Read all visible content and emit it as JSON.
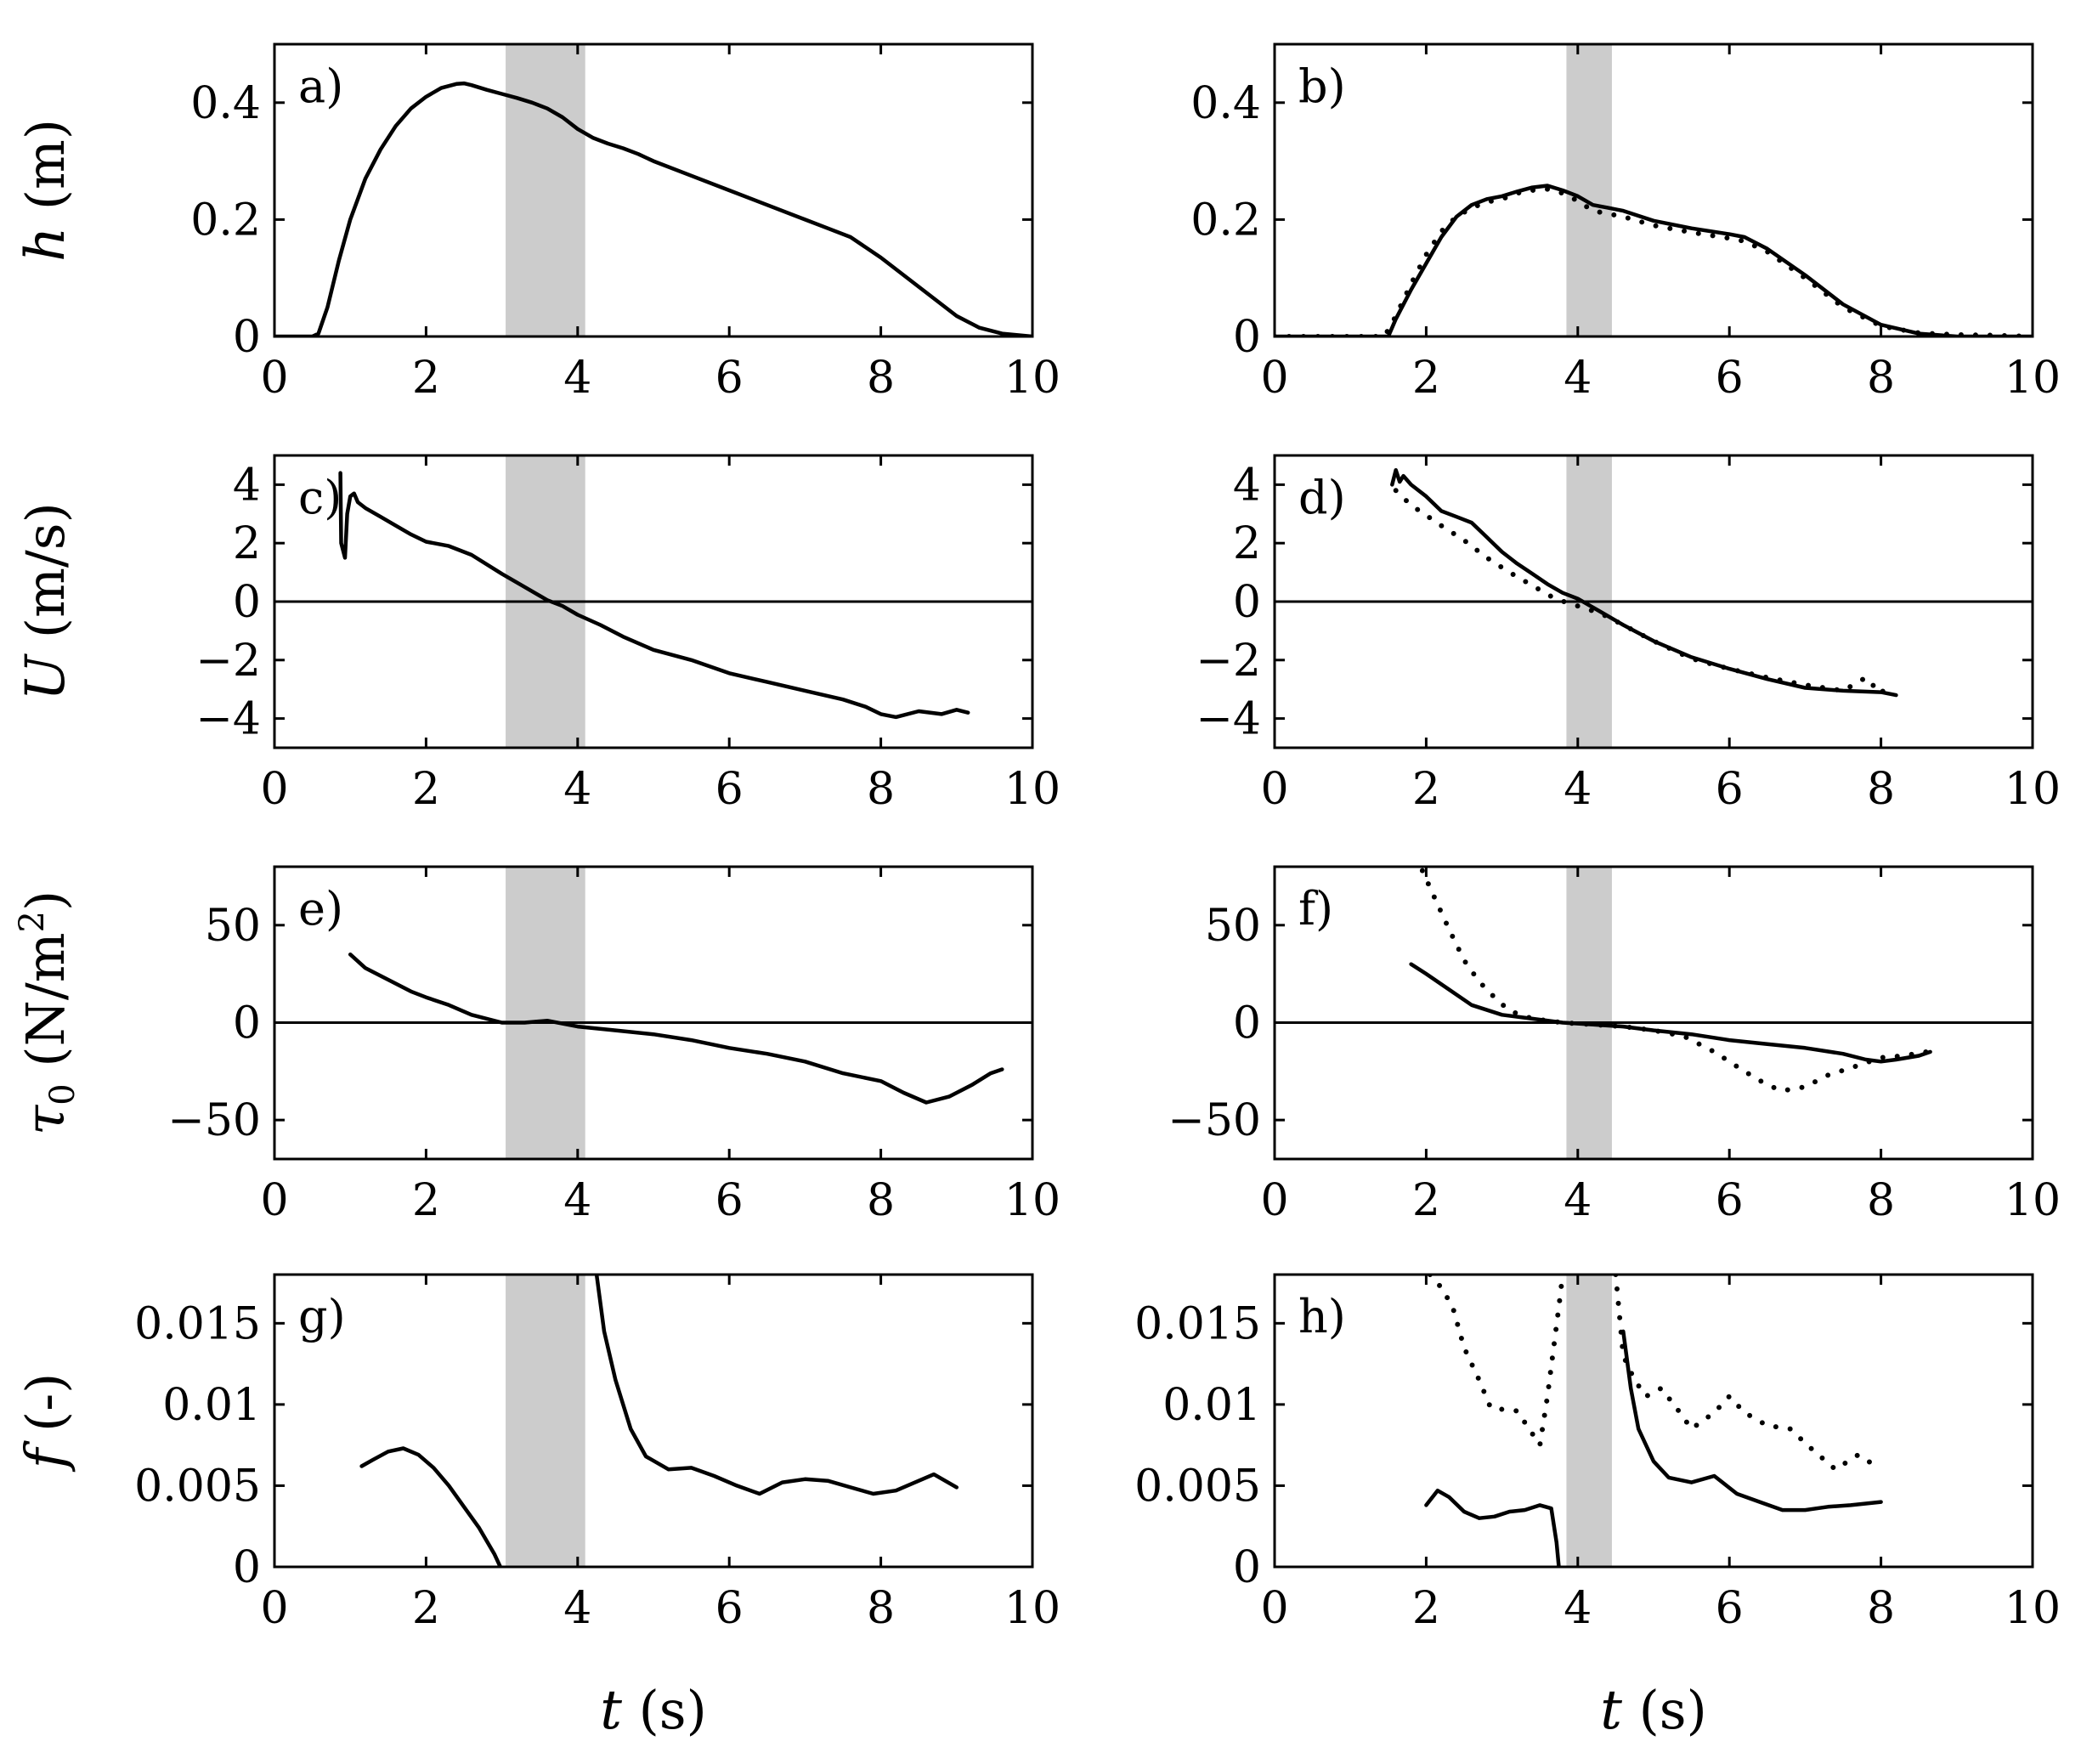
{
  "chart_data": [
    {
      "type": "line",
      "panel_label": "a)",
      "row": 0,
      "col": 0,
      "ylabel_sym": "h",
      "ylabel_unit": " (m)",
      "xlabel": "",
      "xlim": [
        0,
        10
      ],
      "ylim": [
        0,
        0.5
      ],
      "xticks": [
        0,
        2,
        4,
        6,
        8,
        10
      ],
      "xtick_labels": [
        "0",
        "2",
        "4",
        "6",
        "8",
        "10"
      ],
      "yticks": [
        0,
        0.2,
        0.4
      ],
      "ytick_labels": [
        "0",
        "0.2",
        "0.4"
      ],
      "shade": [
        3.05,
        4.1
      ],
      "zero_line": false,
      "series": [
        {
          "name": "solid",
          "style": "solid",
          "x": [
            0,
            0.5,
            0.58,
            0.7,
            0.85,
            1.0,
            1.2,
            1.4,
            1.6,
            1.8,
            2.0,
            2.2,
            2.4,
            2.5,
            2.6,
            2.8,
            3.0,
            3.2,
            3.4,
            3.6,
            3.8,
            4.0,
            4.2,
            4.4,
            4.6,
            4.8,
            5.0,
            5.5,
            6.0,
            6.5,
            7.0,
            7.3,
            7.6,
            8.0,
            8.5,
            9.0,
            9.3,
            9.6,
            10
          ],
          "y": [
            0,
            0,
            0.005,
            0.05,
            0.13,
            0.2,
            0.27,
            0.32,
            0.36,
            0.39,
            0.41,
            0.425,
            0.432,
            0.433,
            0.43,
            0.422,
            0.415,
            0.408,
            0.4,
            0.39,
            0.375,
            0.355,
            0.34,
            0.33,
            0.322,
            0.312,
            0.3,
            0.275,
            0.25,
            0.225,
            0.2,
            0.185,
            0.17,
            0.135,
            0.085,
            0.035,
            0.015,
            0.005,
            0
          ]
        }
      ]
    },
    {
      "type": "line",
      "panel_label": "b)",
      "row": 0,
      "col": 1,
      "ylabel_sym": "",
      "ylabel_unit": "",
      "xlabel": "",
      "xlim": [
        0,
        10
      ],
      "ylim": [
        0,
        0.5
      ],
      "xticks": [
        0,
        2,
        4,
        6,
        8,
        10
      ],
      "xtick_labels": [
        "0",
        "2",
        "4",
        "6",
        "8",
        "10"
      ],
      "yticks": [
        0,
        0.2,
        0.4
      ],
      "ytick_labels": [
        "0",
        "0.2",
        "0.4"
      ],
      "shade": [
        3.85,
        4.45
      ],
      "zero_line": false,
      "series": [
        {
          "name": "solid",
          "style": "solid",
          "x": [
            0,
            1.5,
            1.6,
            1.8,
            2.0,
            2.2,
            2.4,
            2.6,
            2.8,
            3.0,
            3.2,
            3.4,
            3.6,
            3.8,
            4.0,
            4.2,
            4.4,
            4.6,
            5.0,
            5.5,
            6.0,
            6.2,
            6.5,
            7.0,
            7.5,
            8.0,
            8.5,
            9.0,
            9.5,
            10
          ],
          "y": [
            0,
            0,
            0.03,
            0.08,
            0.125,
            0.17,
            0.205,
            0.225,
            0.235,
            0.24,
            0.248,
            0.255,
            0.258,
            0.25,
            0.24,
            0.225,
            0.22,
            0.215,
            0.198,
            0.185,
            0.175,
            0.17,
            0.15,
            0.105,
            0.055,
            0.02,
            0.005,
            0,
            0,
            0
          ]
        },
        {
          "name": "dotted",
          "style": "dotted",
          "x": [
            0,
            1.45,
            1.6,
            1.8,
            2.0,
            2.2,
            2.4,
            2.6,
            2.8,
            3.0,
            3.2,
            3.4,
            3.6,
            3.8,
            4.0,
            4.2,
            4.4,
            4.6,
            5.0,
            5.5,
            6.0,
            6.2,
            6.5,
            7.0,
            7.5,
            8.0,
            8.5,
            9.0,
            9.5,
            10
          ],
          "y": [
            0,
            0,
            0.035,
            0.09,
            0.14,
            0.18,
            0.205,
            0.22,
            0.23,
            0.235,
            0.245,
            0.25,
            0.252,
            0.245,
            0.232,
            0.215,
            0.21,
            0.205,
            0.19,
            0.178,
            0.168,
            0.163,
            0.145,
            0.1,
            0.05,
            0.018,
            0.006,
            0.003,
            0.002,
            0
          ]
        }
      ]
    },
    {
      "type": "line",
      "panel_label": "c)",
      "row": 1,
      "col": 0,
      "ylabel_sym": "U",
      "ylabel_unit": " (m/s)",
      "xlabel": "",
      "xlim": [
        0,
        10
      ],
      "ylim": [
        -5,
        5
      ],
      "xticks": [
        0,
        2,
        4,
        6,
        8,
        10
      ],
      "xtick_labels": [
        "0",
        "2",
        "4",
        "6",
        "8",
        "10"
      ],
      "yticks": [
        -4,
        -2,
        0,
        2,
        4
      ],
      "ytick_labels": [
        "−4",
        "−2",
        "0",
        "2",
        "4"
      ],
      "shade": [
        3.05,
        4.1
      ],
      "zero_line": true,
      "series": [
        {
          "name": "solid",
          "style": "solid",
          "x": [
            0.87,
            0.88,
            0.93,
            0.96,
            1.0,
            1.05,
            1.1,
            1.2,
            1.4,
            1.6,
            1.8,
            2.0,
            2.3,
            2.6,
            3.0,
            3.3,
            3.6,
            3.8,
            4.0,
            4.3,
            4.6,
            5.0,
            5.5,
            6.0,
            6.5,
            7.0,
            7.5,
            7.8,
            8.0,
            8.2,
            8.5,
            8.8,
            9.0,
            9.15
          ],
          "y": [
            4.4,
            2.0,
            1.5,
            3.0,
            3.6,
            3.7,
            3.4,
            3.2,
            2.9,
            2.6,
            2.3,
            2.05,
            1.9,
            1.6,
            0.95,
            0.5,
            0.05,
            -0.15,
            -0.45,
            -0.8,
            -1.2,
            -1.65,
            -2.0,
            -2.45,
            -2.75,
            -3.05,
            -3.35,
            -3.6,
            -3.85,
            -3.95,
            -3.75,
            -3.85,
            -3.7,
            -3.8
          ]
        }
      ]
    },
    {
      "type": "line",
      "panel_label": "d)",
      "row": 1,
      "col": 1,
      "ylabel_sym": "",
      "ylabel_unit": "",
      "xlabel": "",
      "xlim": [
        0,
        10
      ],
      "ylim": [
        -5,
        5
      ],
      "xticks": [
        0,
        2,
        4,
        6,
        8,
        10
      ],
      "xtick_labels": [
        "0",
        "2",
        "4",
        "6",
        "8",
        "10"
      ],
      "yticks": [
        -4,
        -2,
        0,
        2,
        4
      ],
      "ytick_labels": [
        "−4",
        "−2",
        "0",
        "2",
        "4"
      ],
      "shade": [
        3.85,
        4.45
      ],
      "zero_line": true,
      "series": [
        {
          "name": "solid",
          "style": "solid",
          "x": [
            1.55,
            1.6,
            1.65,
            1.7,
            1.8,
            2.0,
            2.2,
            2.4,
            2.6,
            2.8,
            3.0,
            3.2,
            3.4,
            3.6,
            3.8,
            4.0,
            4.3,
            4.6,
            5.0,
            5.5,
            6.0,
            6.5,
            7.0,
            7.5,
            8.0,
            8.2
          ],
          "y": [
            4.0,
            4.5,
            4.1,
            4.3,
            4.0,
            3.6,
            3.1,
            2.9,
            2.7,
            2.2,
            1.7,
            1.3,
            0.95,
            0.6,
            0.3,
            0.1,
            -0.35,
            -0.8,
            -1.35,
            -1.9,
            -2.3,
            -2.65,
            -2.95,
            -3.05,
            -3.1,
            -3.2
          ]
        },
        {
          "name": "dotted",
          "style": "dotted",
          "x": [
            1.6,
            1.8,
            2.0,
            2.2,
            2.5,
            2.8,
            3.1,
            3.4,
            3.7,
            4.0,
            4.3,
            4.6,
            5.0,
            5.5,
            6.0,
            6.5,
            7.0,
            7.5,
            7.8,
            8.0,
            8.1
          ],
          "y": [
            3.8,
            3.3,
            2.95,
            2.6,
            2.1,
            1.5,
            1.0,
            0.55,
            0.1,
            -0.15,
            -0.4,
            -0.8,
            -1.35,
            -1.95,
            -2.3,
            -2.6,
            -2.85,
            -3.05,
            -2.6,
            -3.15,
            -2.8
          ]
        }
      ]
    },
    {
      "type": "line",
      "panel_label": "e)",
      "row": 2,
      "col": 0,
      "ylabel_sym": "τ",
      "ylabel_sub": "0",
      "ylabel_unit": " (N/m",
      "ylabel_sup": "2",
      "ylabel_end": ")",
      "xlabel": "",
      "xlim": [
        0,
        10
      ],
      "ylim": [
        -70,
        80
      ],
      "xticks": [
        0,
        2,
        4,
        6,
        8,
        10
      ],
      "xtick_labels": [
        "0",
        "2",
        "4",
        "6",
        "8",
        "10"
      ],
      "yticks": [
        -50,
        0,
        50
      ],
      "ytick_labels": [
        "−50",
        "0",
        "50"
      ],
      "shade": [
        3.05,
        4.1
      ],
      "zero_line": true,
      "series": [
        {
          "name": "solid",
          "style": "solid",
          "x": [
            1.0,
            1.2,
            1.5,
            1.8,
            2.0,
            2.3,
            2.6,
            3.0,
            3.3,
            3.6,
            4.0,
            4.5,
            5.0,
            5.5,
            6.0,
            6.5,
            7.0,
            7.5,
            8.0,
            8.3,
            8.6,
            8.9,
            9.2,
            9.45,
            9.6
          ],
          "y": [
            35,
            28,
            22,
            16,
            13,
            9,
            4,
            0,
            0,
            1,
            -2,
            -4,
            -6,
            -9,
            -13,
            -16,
            -20,
            -26,
            -30,
            -36,
            -41,
            -38,
            -32,
            -26,
            -24
          ]
        }
      ]
    },
    {
      "type": "line",
      "panel_label": "f)",
      "row": 2,
      "col": 1,
      "ylabel_sym": "",
      "ylabel_unit": "",
      "xlabel": "",
      "xlim": [
        0,
        10
      ],
      "ylim": [
        -70,
        80
      ],
      "xticks": [
        0,
        2,
        4,
        6,
        8,
        10
      ],
      "xtick_labels": [
        "0",
        "2",
        "4",
        "6",
        "8",
        "10"
      ],
      "yticks": [
        -50,
        0,
        50
      ],
      "ytick_labels": [
        "−50",
        "0",
        "50"
      ],
      "shade": [
        3.85,
        4.45
      ],
      "zero_line": true,
      "series": [
        {
          "name": "solid",
          "style": "solid",
          "x": [
            1.8,
            2.0,
            2.3,
            2.6,
            3.0,
            3.4,
            3.8,
            4.2,
            4.6,
            5.0,
            5.5,
            6.0,
            6.5,
            7.0,
            7.5,
            7.8,
            8.0,
            8.2,
            8.5,
            8.65
          ],
          "y": [
            30,
            25,
            17,
            9,
            4,
            2,
            0,
            -1,
            -2,
            -4,
            -6,
            -9,
            -11,
            -13,
            -16,
            -19,
            -20,
            -19,
            -17,
            -15
          ]
        },
        {
          "name": "dotted",
          "style": "dotted",
          "x": [
            1.95,
            2.1,
            2.3,
            2.5,
            2.7,
            2.9,
            3.1,
            3.4,
            3.8,
            4.2,
            4.6,
            5.0,
            5.4,
            5.8,
            6.2,
            6.5,
            6.7,
            7.0,
            7.3,
            7.7,
            8.0,
            8.3,
            8.6,
            8.75
          ],
          "y": [
            78,
            65,
            48,
            32,
            21,
            13,
            6,
            2,
            0,
            -1,
            -2,
            -4,
            -7,
            -15,
            -25,
            -32,
            -35,
            -33,
            -27,
            -22,
            -18,
            -17,
            -15,
            -14
          ]
        }
      ]
    },
    {
      "type": "line",
      "panel_label": "g)",
      "row": 3,
      "col": 0,
      "ylabel_sym": "f",
      "ylabel_unit": " (-)",
      "xlabel": "t (s)",
      "xlim": [
        0,
        10
      ],
      "ylim": [
        0,
        0.018
      ],
      "xticks": [
        0,
        2,
        4,
        6,
        8,
        10
      ],
      "xtick_labels": [
        "0",
        "2",
        "4",
        "6",
        "8",
        "10"
      ],
      "yticks": [
        0,
        0.005,
        0.01,
        0.015
      ],
      "ytick_labels": [
        "0",
        "0.005",
        "0.01",
        "0.015"
      ],
      "shade": [
        3.05,
        4.1
      ],
      "zero_line": false,
      "series": [
        {
          "name": "solid",
          "style": "solid",
          "x": [
            1.15,
            1.3,
            1.5,
            1.7,
            1.9,
            2.1,
            2.3,
            2.5,
            2.7,
            2.9,
            2.98
          ],
          "y": [
            0.0062,
            0.0066,
            0.0071,
            0.0073,
            0.0069,
            0.0061,
            0.005,
            0.0037,
            0.0024,
            0.0008,
            0
          ]
        },
        {
          "name": "solid-b",
          "style": "solid",
          "x": [
            4.25,
            4.35,
            4.5,
            4.7,
            4.9,
            5.2,
            5.5,
            5.8,
            6.1,
            6.4,
            6.7,
            7.0,
            7.3,
            7.6,
            7.9,
            8.2,
            8.5,
            8.7,
            9.0
          ],
          "y": [
            0.018,
            0.0145,
            0.0115,
            0.0085,
            0.0068,
            0.006,
            0.0061,
            0.0056,
            0.005,
            0.0045,
            0.0052,
            0.0054,
            0.0053,
            0.0049,
            0.0045,
            0.0047,
            0.0053,
            0.0057,
            0.0049
          ]
        }
      ]
    },
    {
      "type": "line",
      "panel_label": "h)",
      "row": 3,
      "col": 1,
      "ylabel_sym": "",
      "ylabel_unit": "",
      "xlabel": "t (s)",
      "xlim": [
        0,
        10
      ],
      "ylim": [
        0,
        0.018
      ],
      "xticks": [
        0,
        2,
        4,
        6,
        8,
        10
      ],
      "xtick_labels": [
        "0",
        "2",
        "4",
        "6",
        "8",
        "10"
      ],
      "yticks": [
        0,
        0.005,
        0.01,
        0.015
      ],
      "ytick_labels": [
        "0",
        "0.005",
        "0.01",
        "0.015"
      ],
      "shade": [
        3.85,
        4.45
      ],
      "zero_line": false,
      "series": [
        {
          "name": "solid",
          "style": "solid",
          "x": [
            2.0,
            2.15,
            2.3,
            2.5,
            2.7,
            2.9,
            3.1,
            3.3,
            3.5,
            3.65,
            3.72,
            3.75
          ],
          "y": [
            0.0038,
            0.0047,
            0.0043,
            0.0034,
            0.003,
            0.0031,
            0.0034,
            0.0035,
            0.0038,
            0.0036,
            0.0015,
            0
          ]
        },
        {
          "name": "solid-b",
          "style": "solid",
          "x": [
            4.6,
            4.7,
            4.8,
            5.0,
            5.2,
            5.5,
            5.8,
            6.1,
            6.4,
            6.7,
            7.0,
            7.3,
            7.6,
            8.0
          ],
          "y": [
            0.0145,
            0.011,
            0.0085,
            0.0065,
            0.0055,
            0.0052,
            0.0056,
            0.0045,
            0.004,
            0.0035,
            0.0035,
            0.0037,
            0.0038,
            0.004
          ]
        },
        {
          "name": "dotted",
          "style": "dotted",
          "x": [
            2.05,
            2.2,
            2.35,
            2.5,
            2.7,
            2.85,
            3.0,
            3.2,
            3.4,
            3.5,
            3.6,
            3.75,
            3.8
          ],
          "y": [
            0.018,
            0.0172,
            0.016,
            0.0135,
            0.0115,
            0.0098,
            0.0097,
            0.0096,
            0.0082,
            0.0075,
            0.0105,
            0.016,
            0.018
          ]
        },
        {
          "name": "dotted-b",
          "style": "dotted",
          "x": [
            4.5,
            4.6,
            4.75,
            4.9,
            5.1,
            5.3,
            5.5,
            5.8,
            6.0,
            6.2,
            6.5,
            6.8,
            7.1,
            7.4,
            7.7,
            8.0
          ],
          "y": [
            0.018,
            0.013,
            0.0115,
            0.0105,
            0.011,
            0.0098,
            0.0085,
            0.0095,
            0.0105,
            0.0095,
            0.0087,
            0.0085,
            0.0072,
            0.006,
            0.0069,
            0.006
          ]
        }
      ]
    }
  ]
}
